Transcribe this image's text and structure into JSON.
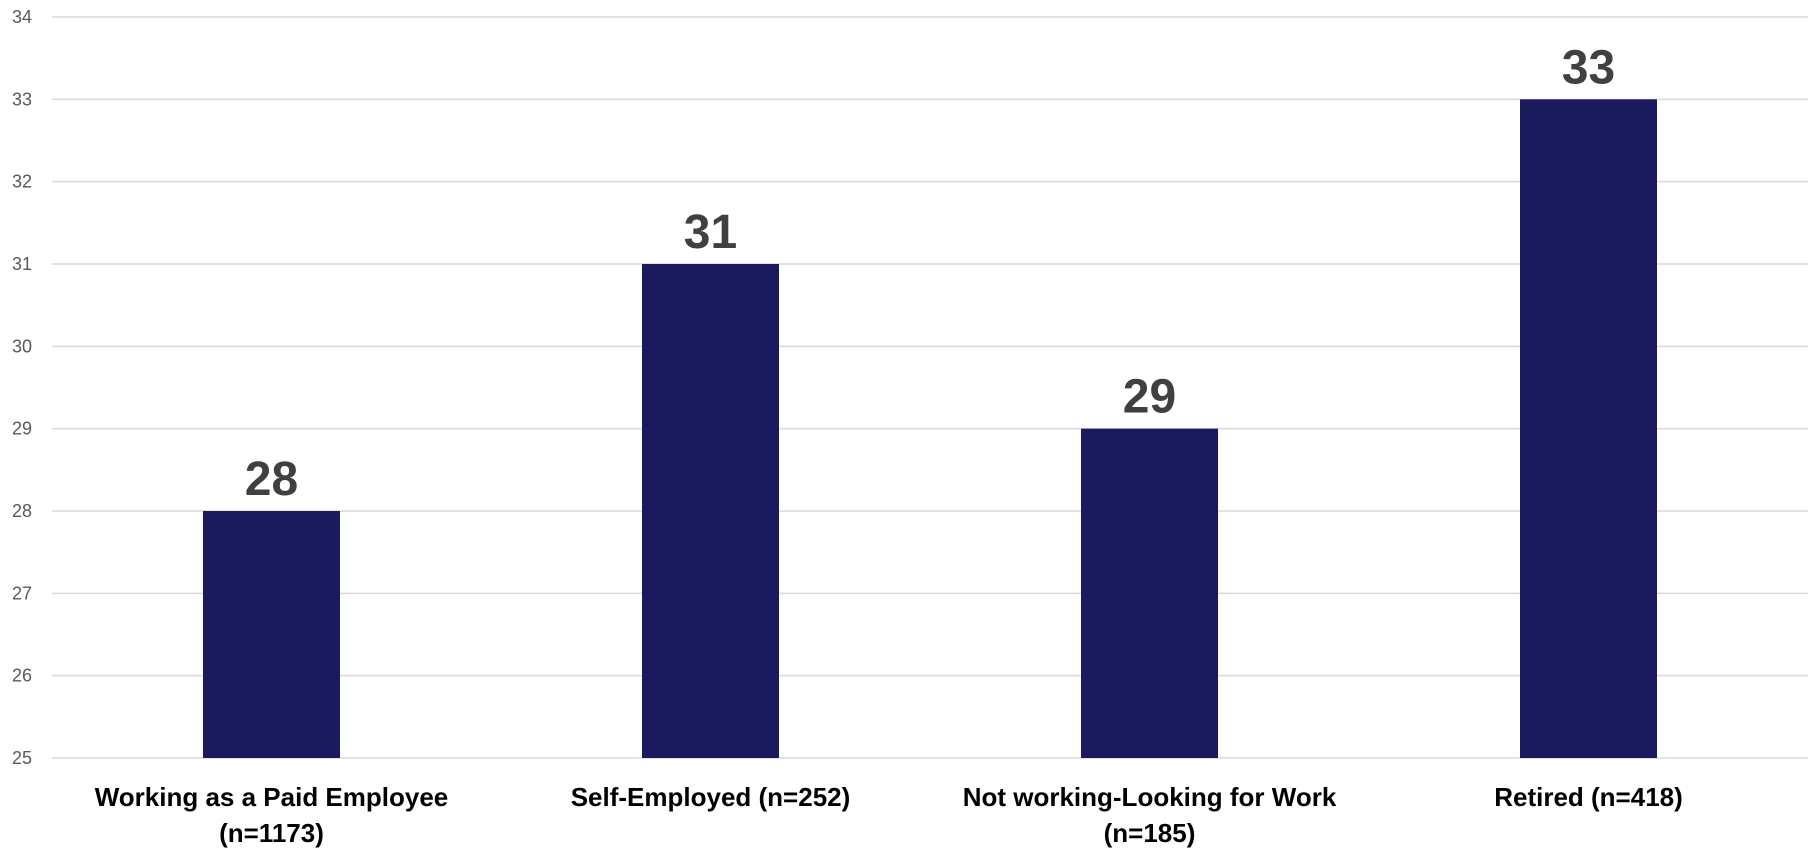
{
  "chart_data": {
    "type": "bar",
    "categories": [
      [
        "Working as a Paid Employee",
        "(n=1173)"
      ],
      [
        "Self-Employed (n=252)"
      ],
      [
        "Not working-Looking for Work",
        "(n=185)"
      ],
      [
        "Retired (n=418)"
      ]
    ],
    "values": [
      28,
      31,
      29,
      33
    ],
    "data_labels": [
      "28",
      "31",
      "29",
      "33"
    ],
    "title": "",
    "xlabel": "",
    "ylabel": "",
    "ylim": [
      25,
      34
    ],
    "yticks": [
      25,
      26,
      27,
      28,
      29,
      30,
      31,
      32,
      33,
      34
    ],
    "grid": true,
    "legend": "none",
    "colors": {
      "bar": "#1b1a5e",
      "grid": "#d9d9d9",
      "data_label": "#404040",
      "axis_text": "#595959"
    }
  }
}
